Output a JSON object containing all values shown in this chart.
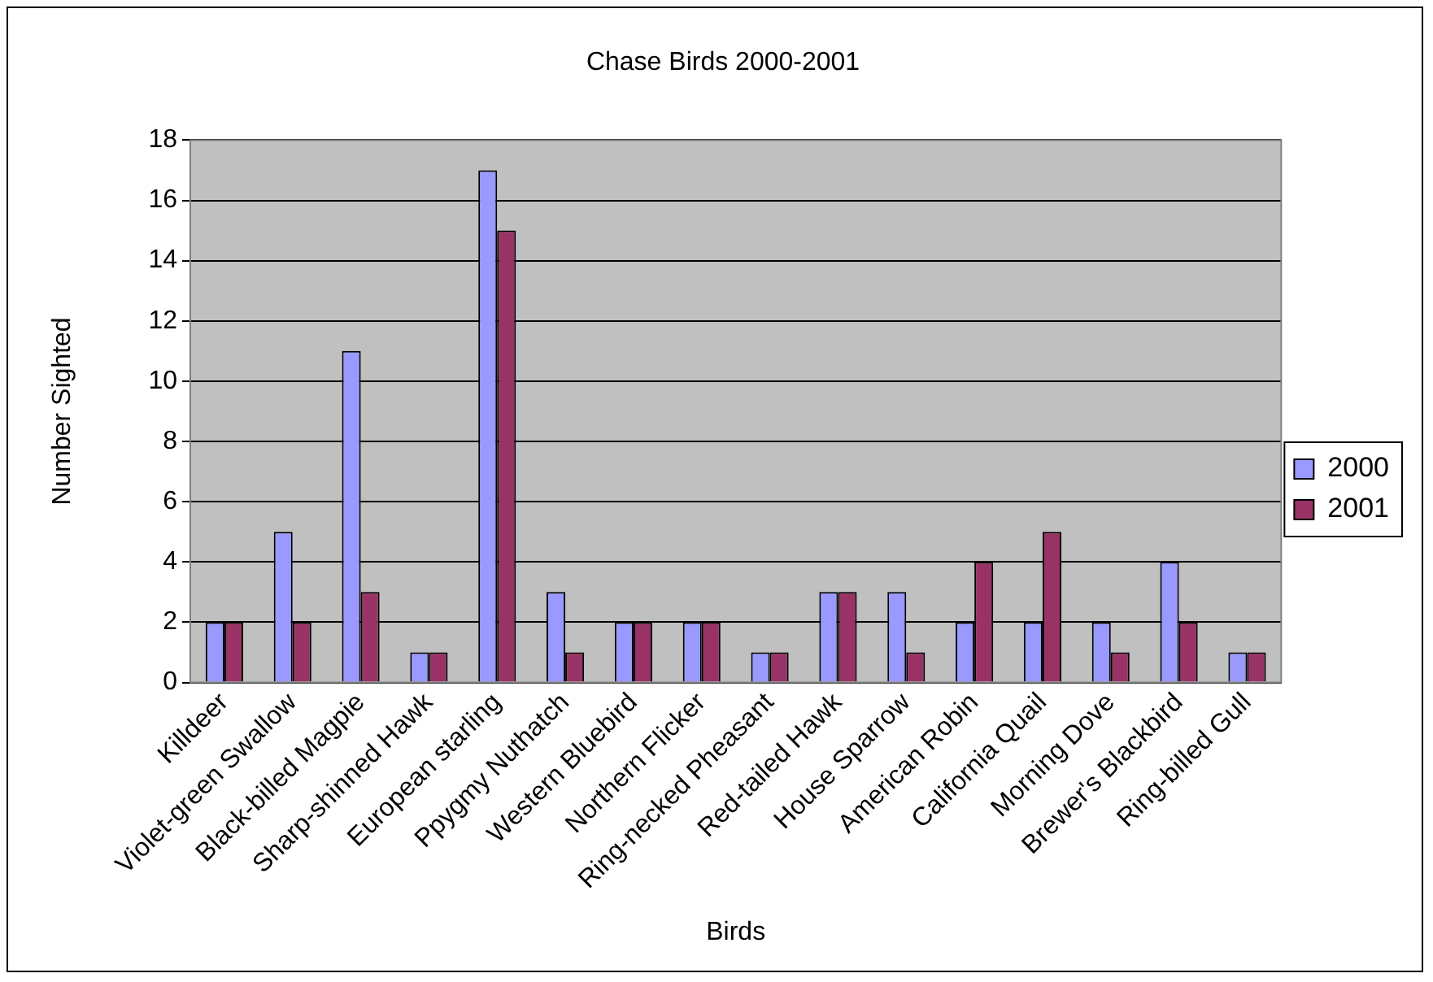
{
  "chart_data": {
    "type": "bar",
    "title": "Chase Birds 2000-2001",
    "xlabel": "Birds",
    "ylabel": "Number Sighted",
    "categories": [
      "Killdeer",
      "Violet-green Swallow",
      "Black-billed Magpie",
      "Sharp-shinned Hawk",
      "European starling",
      "Ppygmy Nuthatch",
      "Western Bluebird",
      "Northern Flicker",
      "Ring-necked Pheasant",
      "Red-tailed Hawk",
      "House Sparrow",
      "American Robin",
      "California Quail",
      "Morning Dove",
      "Brewer's Blackbird",
      "Ring-billed Gull"
    ],
    "series": [
      {
        "name": "2000",
        "color": "#9999ff",
        "values": [
          2,
          5,
          11,
          1,
          17,
          3,
          2,
          2,
          1,
          3,
          3,
          2,
          2,
          2,
          4,
          1
        ]
      },
      {
        "name": "2001",
        "color": "#993366",
        "values": [
          2,
          2,
          3,
          1,
          15,
          1,
          2,
          2,
          1,
          3,
          1,
          4,
          5,
          1,
          2,
          1
        ]
      }
    ],
    "ylim": [
      0,
      18
    ],
    "yticks": [
      0,
      2,
      4,
      6,
      8,
      10,
      12,
      14,
      16,
      18
    ],
    "grid": "y",
    "legend": "right"
  }
}
